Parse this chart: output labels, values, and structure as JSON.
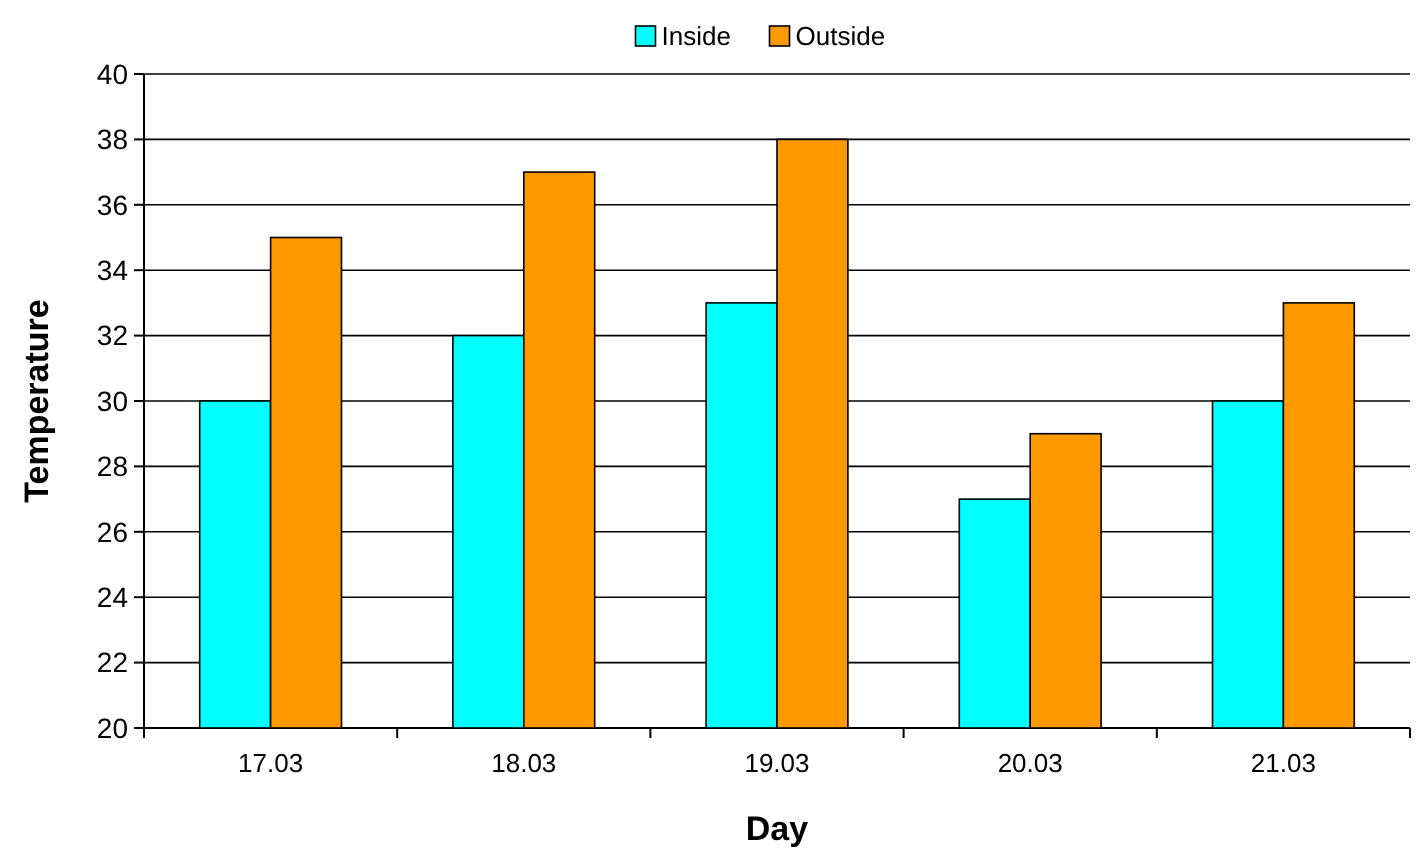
{
  "chart_data": {
    "type": "bar",
    "xlabel": "Day",
    "ylabel": "Temperature",
    "categories": [
      "17.03",
      "18.03",
      "19.03",
      "20.03",
      "21.03"
    ],
    "series": [
      {
        "name": "Inside",
        "color": "#00ffff",
        "values": [
          30,
          32,
          33,
          27,
          30
        ]
      },
      {
        "name": "Outside",
        "color": "#ff9900",
        "values": [
          35,
          37,
          38,
          29,
          33
        ]
      }
    ],
    "ylim": [
      20,
      40
    ],
    "yticks": [
      20,
      22,
      24,
      26,
      28,
      30,
      32,
      34,
      36,
      38,
      40
    ],
    "grid": "y",
    "legend": "top"
  }
}
